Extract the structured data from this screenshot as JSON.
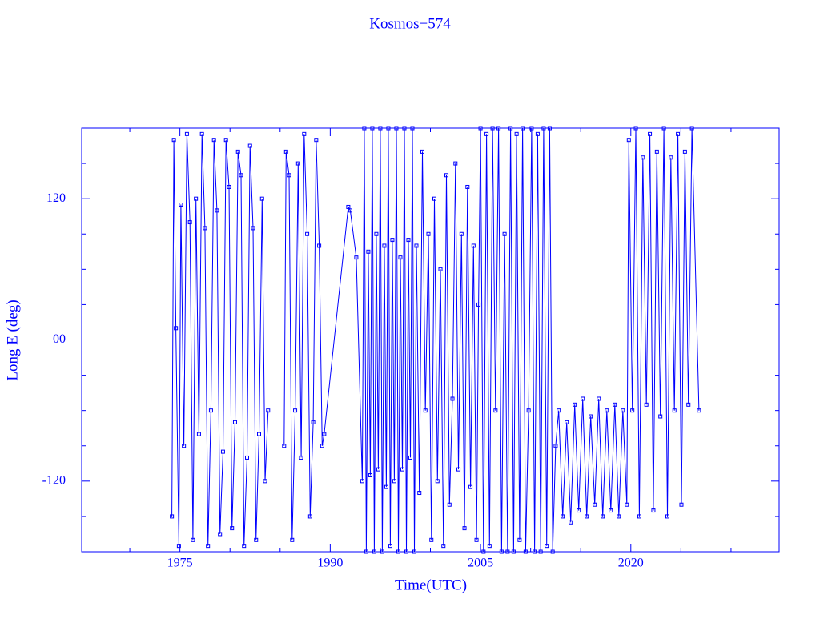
{
  "chart_data": {
    "type": "line",
    "title": "Kosmos−574",
    "x_label": "Time(UTC)",
    "y_label": "Long E (deg)",
    "color": "#0000ff",
    "markers": true,
    "grid": false,
    "xlim": [
      1965.2,
      2034.8
    ],
    "ylim": [
      -180,
      180
    ],
    "xticks": [
      1975,
      1990,
      2005,
      2020
    ],
    "xminorticks": [
      1970,
      1980,
      1985,
      1995,
      2000,
      2010,
      2015,
      2025,
      2030
    ],
    "yticks": [
      -120,
      {
        "value": 0,
        "label": "00"
      },
      120
    ],
    "yminorticks": [
      -150,
      -90,
      -60,
      -30,
      30,
      60,
      90,
      150
    ],
    "x": [
      1974.2,
      1974.4,
      1974.6,
      1974.9,
      1975.1,
      1975.4,
      1975.7,
      1976.0,
      1976.3,
      1976.6,
      1976.9,
      1977.2,
      1977.5,
      1977.8,
      1978.1,
      1978.4,
      1978.7,
      1979.0,
      1979.3,
      1979.6,
      1979.9,
      1980.2,
      1980.5,
      1980.8,
      1981.1,
      1981.4,
      1981.7,
      1982.0,
      1982.3,
      1982.6,
      1982.9,
      1983.2,
      1983.5,
      1983.8,
      1984.5,
      1985.4,
      1985.6,
      1985.9,
      1986.2,
      1986.5,
      1986.8,
      1987.1,
      1987.4,
      1987.7,
      1988.0,
      1988.3,
      1988.6,
      1988.9,
      1989.2,
      1989.4,
      1991.8,
      1992.0,
      1992.6,
      1993.2,
      1993.4,
      1993.6,
      1993.8,
      1994.0,
      1994.2,
      1994.4,
      1994.6,
      1994.8,
      1995.0,
      1995.2,
      1995.4,
      1995.6,
      1995.8,
      1996.0,
      1996.2,
      1996.4,
      1996.6,
      1996.8,
      1997.0,
      1997.2,
      1997.4,
      1997.6,
      1997.8,
      1998.0,
      1998.2,
      1998.4,
      1998.6,
      1998.9,
      1999.2,
      1999.5,
      1999.8,
      2000.1,
      2000.4,
      2000.7,
      2001.0,
      2001.3,
      2001.6,
      2001.9,
      2002.2,
      2002.5,
      2002.8,
      2003.1,
      2003.4,
      2003.7,
      2004.0,
      2004.3,
      2004.6,
      2004.8,
      2005.0,
      2005.3,
      2005.6,
      2005.9,
      2006.2,
      2006.5,
      2006.8,
      2007.1,
      2007.4,
      2007.7,
      2008.0,
      2008.3,
      2008.6,
      2008.9,
      2009.2,
      2009.5,
      2009.8,
      2010.1,
      2010.4,
      2010.7,
      2011.0,
      2011.3,
      2011.6,
      2011.9,
      2012.2,
      2012.5,
      2012.8,
      2013.2,
      2013.6,
      2014.0,
      2014.4,
      2014.8,
      2015.2,
      2015.6,
      2016.0,
      2016.4,
      2016.8,
      2017.2,
      2017.6,
      2018.0,
      2018.4,
      2018.8,
      2019.2,
      2019.6,
      2019.8,
      2020.15,
      2020.5,
      2020.85,
      2021.2,
      2021.55,
      2021.9,
      2022.25,
      2022.6,
      2022.95,
      2023.3,
      2023.65,
      2024.0,
      2024.35,
      2024.7,
      2025.05,
      2025.4,
      2025.75,
      2026.1,
      2026.8
    ],
    "values": [
      -150,
      170,
      10,
      -175,
      115,
      -90,
      175,
      100,
      -170,
      120,
      -80,
      175,
      95,
      -175,
      -60,
      170,
      110,
      -165,
      -95,
      170,
      130,
      -160,
      -70,
      160,
      140,
      -175,
      -100,
      165,
      95,
      -170,
      -80,
      120,
      -120,
      -60,
      null,
      -90,
      160,
      140,
      -170,
      -60,
      150,
      -100,
      175,
      90,
      -150,
      -70,
      170,
      80,
      -90,
      -80,
      113,
      110,
      70,
      -120,
      180,
      -180,
      75,
      -115,
      180,
      -180,
      90,
      -110,
      180,
      -180,
      80,
      -125,
      180,
      -175,
      85,
      -120,
      180,
      -180,
      70,
      -110,
      180,
      -180,
      85,
      -100,
      180,
      -180,
      80,
      -130,
      160,
      -60,
      90,
      -170,
      120,
      -120,
      60,
      -175,
      140,
      -140,
      -50,
      150,
      -110,
      90,
      -160,
      130,
      -125,
      80,
      -170,
      30,
      180,
      -180,
      175,
      -175,
      180,
      -60,
      180,
      -180,
      90,
      -180,
      180,
      -180,
      175,
      -170,
      180,
      -180,
      -60,
      180,
      -180,
      175,
      -180,
      180,
      -175,
      180,
      -180,
      -90,
      -60,
      -150,
      -70,
      -155,
      -55,
      -145,
      -50,
      -150,
      -65,
      -140,
      -50,
      -150,
      -60,
      -145,
      -55,
      -150,
      -60,
      -140,
      170,
      -60,
      180,
      -150,
      155,
      -55,
      175,
      -145,
      160,
      -65,
      180,
      -150,
      155,
      -60,
      175,
      -140,
      160,
      -55,
      180,
      -60
    ]
  }
}
